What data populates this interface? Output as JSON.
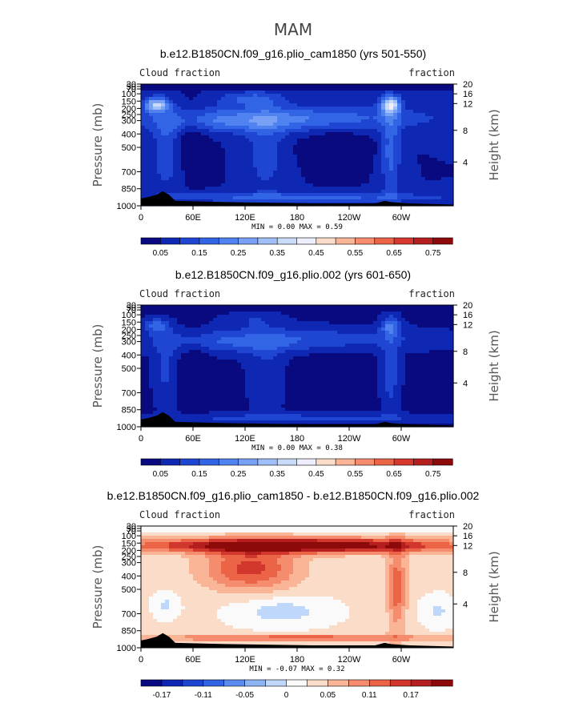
{
  "figure": {
    "title": "MAM"
  },
  "chart_data": [
    {
      "type": "heatmap",
      "title": "b.e12.B1850CN.f09_g16.plio_cam1850 (yrs 501-550)",
      "left_label": "Cloud fraction",
      "right_label": "fraction",
      "ylabel": "Pressure (mb)",
      "ylabel_right": "Height (km)",
      "x_ticks": [
        "0",
        "60E",
        "120E",
        "180",
        "120W",
        "60W"
      ],
      "y_ticks": [
        "30",
        "50",
        "70",
        "100",
        "150",
        "200",
        "250",
        "300",
        "400",
        "500",
        "700",
        "850",
        "1000"
      ],
      "height_ticks": [
        "20",
        "16",
        "12",
        "8",
        "4"
      ],
      "stats": "MIN =    0.00   MAX =    0.59",
      "min": 0.0,
      "max": 0.59,
      "colorbar": {
        "levels": [
          "0.05",
          "0.15",
          "0.25",
          "0.35",
          "0.45",
          "0.55",
          "0.65",
          "0.75"
        ],
        "colors": [
          "#0a0a80",
          "#0f28b4",
          "#1e46d2",
          "#3264e6",
          "#5082f0",
          "#78a0f5",
          "#a0bef8",
          "#c8dcfa",
          "#eeeeff",
          "#fadcc8",
          "#fab496",
          "#f58c6e",
          "#eb6446",
          "#d7372d",
          "#b41e1e",
          "#8c0a0a"
        ]
      },
      "colormap": "cloud"
    },
    {
      "type": "heatmap",
      "title": "b.e12.B1850CN.f09_g16.plio.002 (yrs 601-650)",
      "left_label": "Cloud fraction",
      "right_label": "fraction",
      "ylabel": "Pressure (mb)",
      "ylabel_right": "Height (km)",
      "x_ticks": [
        "0",
        "60E",
        "120E",
        "180",
        "120W",
        "60W"
      ],
      "y_ticks": [
        "30",
        "50",
        "70",
        "100",
        "150",
        "200",
        "250",
        "300",
        "400",
        "500",
        "700",
        "850",
        "1000"
      ],
      "height_ticks": [
        "20",
        "16",
        "12",
        "8",
        "4"
      ],
      "stats": "MIN =    0.00   MAX =    0.38",
      "min": 0.0,
      "max": 0.38,
      "colorbar": {
        "levels": [
          "0.05",
          "0.15",
          "0.25",
          "0.35",
          "0.45",
          "0.55",
          "0.65",
          "0.75"
        ],
        "colors": [
          "#0a0a80",
          "#0f28b4",
          "#1e46d2",
          "#3264e6",
          "#5082f0",
          "#78a0f5",
          "#a0bef8",
          "#c8dcfa",
          "#eeeeff",
          "#fadcc8",
          "#fab496",
          "#f58c6e",
          "#eb6446",
          "#d7372d",
          "#b41e1e",
          "#8c0a0a"
        ]
      },
      "colormap": "cloud"
    },
    {
      "type": "heatmap",
      "title": "b.e12.B1850CN.f09_g16.plio_cam1850 - b.e12.B1850CN.f09_g16.plio.002",
      "left_label": "Cloud fraction",
      "right_label": "fraction",
      "ylabel": "Pressure (mb)",
      "ylabel_right": "Height (km)",
      "x_ticks": [
        "0",
        "60E",
        "120E",
        "180",
        "120W",
        "60W"
      ],
      "y_ticks": [
        "30",
        "50",
        "70",
        "100",
        "150",
        "200",
        "250",
        "300",
        "400",
        "500",
        "700",
        "850",
        "1000"
      ],
      "height_ticks": [
        "20",
        "16",
        "12",
        "8",
        "4"
      ],
      "stats": "MIN =  -0.07   MAX =    0.32",
      "min": -0.07,
      "max": 0.32,
      "colorbar": {
        "levels": [
          "-0.17",
          "-0.11",
          "-0.05",
          "0",
          "0.05",
          "0.11",
          "0.17"
        ],
        "colors": [
          "#0a0a80",
          "#0f28b4",
          "#1e46d2",
          "#3264e6",
          "#5a8cf0",
          "#8cb4f5",
          "#bed7fa",
          "#fafafa",
          "#fadcc8",
          "#fab496",
          "#f58c6e",
          "#eb6446",
          "#d2372d",
          "#b41e1e",
          "#8c0a0a"
        ]
      },
      "colormap": "diff"
    }
  ]
}
